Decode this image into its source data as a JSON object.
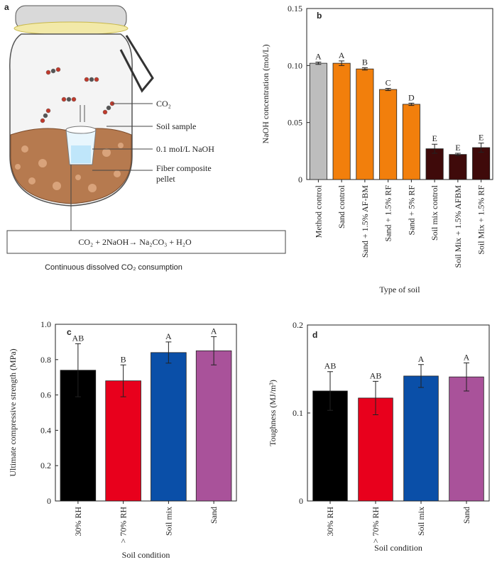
{
  "diagram": {
    "panel_label": "a",
    "co2_label": "CO₂",
    "soil_label": "Soil sample",
    "naoh_label": "0.1 moI/L NaOH",
    "pellet_label": "Fiber composite pellet",
    "equation": "CO₂ + 2NaOH→ Na₂CO₃ + H₂O",
    "caption": "Continuous dissolved CO₂ consumption"
  },
  "chart_data": [
    {
      "type": "bar",
      "panel_label": "b",
      "xlabel": "Type of soil",
      "ylabel": "NaOH concentration (mol/L)",
      "categories": [
        "Method control",
        "Sand control",
        "Sand + 1.5% AF-BM",
        "Sand + 1.5% RF",
        "Sand + 5% RF",
        "Soil mix control",
        "Soil Mix + 1.5% AFBM",
        "Soil Mix + 1.5% RF"
      ],
      "values": [
        0.102,
        0.102,
        0.097,
        0.079,
        0.066,
        0.027,
        0.022,
        0.028
      ],
      "errors": [
        0.001,
        0.002,
        0.001,
        0.001,
        0.001,
        0.004,
        0.001,
        0.004
      ],
      "annotations": [
        "A",
        "A",
        "B",
        "C",
        "D",
        "E",
        "E",
        "E"
      ],
      "colors": [
        "#bdbdbd",
        "#f27f0c",
        "#f27f0c",
        "#f27f0c",
        "#f27f0c",
        "#3f0a0a",
        "#3f0a0a",
        "#3f0a0a"
      ],
      "ylim": [
        0,
        0.15
      ],
      "yticks": [
        0,
        0.05,
        {
          "value": 0.1,
          "label": "0.10"
        },
        0.15
      ]
    },
    {
      "type": "bar",
      "panel_label": "c",
      "xlabel": "Soil condition",
      "ylabel": "Ultimate compressive strength (MPa)",
      "categories": [
        "30% RH",
        "> 70% RH",
        "Soil mix",
        "Sand"
      ],
      "values": [
        0.74,
        0.68,
        0.84,
        0.85
      ],
      "errors": [
        0.15,
        0.09,
        0.06,
        0.08
      ],
      "annotations": [
        "AB",
        "B",
        "A",
        "A"
      ],
      "colors": [
        "#000000",
        "#e8001c",
        "#0a4fa8",
        "#a9529a"
      ],
      "ylim": [
        0,
        1.0
      ],
      "yticks": [
        0,
        0.2,
        0.4,
        0.6,
        0.8,
        {
          "value": 1.0,
          "label": "1.0"
        }
      ]
    },
    {
      "type": "bar",
      "panel_label": "d",
      "xlabel": "Soil condition",
      "ylabel": "Toughness (MJ/m³)",
      "categories": [
        "30% RH",
        "> 70% RH",
        "Soil mix",
        "Sand"
      ],
      "values": [
        0.125,
        0.117,
        0.142,
        0.141
      ],
      "errors": [
        0.022,
        0.019,
        0.013,
        0.016
      ],
      "annotations": [
        "AB",
        "AB",
        "A",
        "A"
      ],
      "colors": [
        "#000000",
        "#e8001c",
        "#0a4fa8",
        "#a9529a"
      ],
      "ylim": [
        0,
        0.2
      ],
      "yticks": [
        0,
        0.1,
        0.2
      ]
    }
  ]
}
